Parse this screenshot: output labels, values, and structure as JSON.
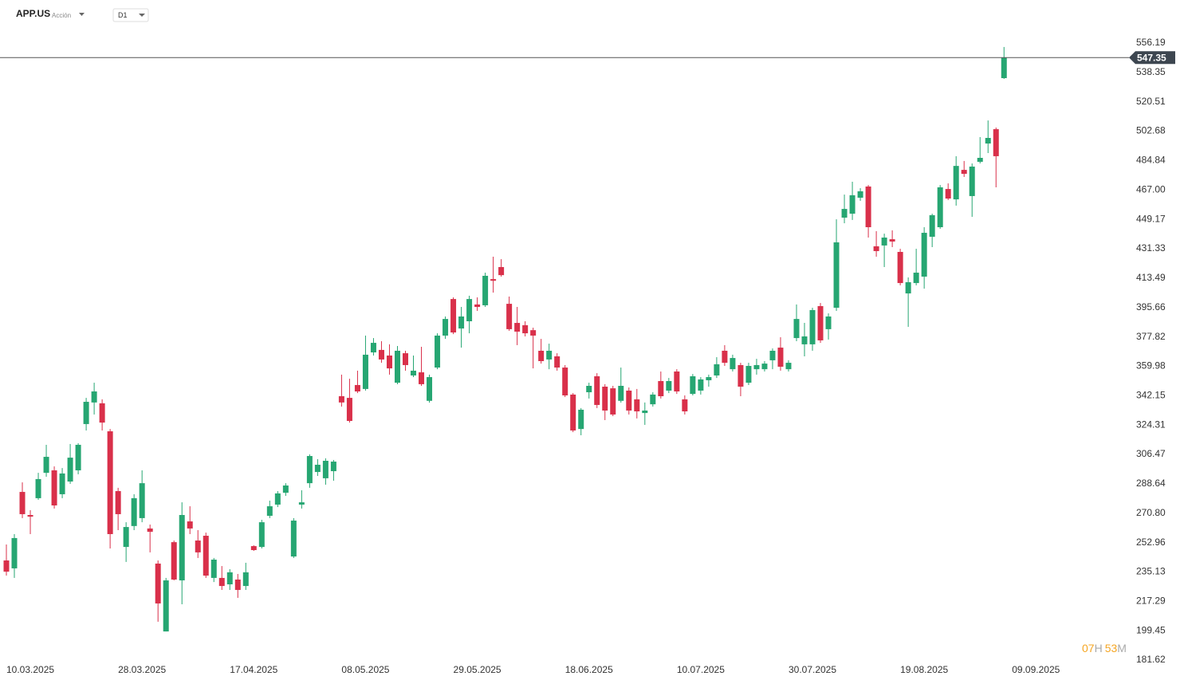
{
  "header": {
    "symbol": "APP.US",
    "kind": "Acción",
    "timeframe": "D1"
  },
  "timer": {
    "hours": "07",
    "hours_unit": "H",
    "minutes": "53",
    "minutes_unit": "M"
  },
  "chart_data": {
    "type": "candlestick",
    "up_color": "#26a672",
    "down_color": "#d9304a",
    "price_line_color": "#555555",
    "current_price": 547.35,
    "ylim": [
      181.62,
      556.19
    ],
    "yticks": [
      556.19,
      538.35,
      520.51,
      502.68,
      484.84,
      {
        "value": 467,
        "label": "467.00"
      },
      449.17,
      431.33,
      413.49,
      395.66,
      377.82,
      359.98,
      342.15,
      324.31,
      306.47,
      288.64,
      {
        "value": 270.8,
        "label": "270.80"
      },
      252.96,
      235.13,
      217.29,
      199.45,
      181.62
    ],
    "categories": [
      "10.03.2025",
      null,
      null,
      null,
      null,
      null,
      null,
      null,
      null,
      null,
      null,
      null,
      null,
      null,
      "28.03.2025",
      null,
      null,
      null,
      null,
      null,
      null,
      null,
      null,
      null,
      null,
      null,
      null,
      null,
      "17.04.2025",
      null,
      null,
      null,
      null,
      null,
      null,
      null,
      null,
      null,
      null,
      null,
      null,
      null,
      "08.05.2025",
      null,
      null,
      null,
      null,
      null,
      null,
      null,
      null,
      null,
      null,
      null,
      null,
      null,
      "29.05.2025",
      null,
      null,
      null,
      null,
      null,
      null,
      null,
      null,
      null,
      null,
      null,
      null,
      null,
      "18.06.2025",
      null,
      null,
      null,
      null,
      null,
      null,
      null,
      null,
      null,
      null,
      null,
      null,
      null,
      "10.07.2025",
      null,
      null,
      null,
      null,
      null,
      null,
      null,
      null,
      null,
      null,
      null,
      null,
      null,
      "30.07.2025",
      null,
      null,
      null,
      null,
      null,
      null,
      null,
      null,
      null,
      null,
      null,
      null,
      null,
      "19.08.2025",
      null,
      null,
      null,
      null,
      null,
      null,
      null,
      null,
      null,
      null,
      null,
      null,
      null,
      "09.09.2025"
    ],
    "open": [
      242.1,
      237.3,
      283.7,
      269.7,
      279.9,
      295.3,
      296.8,
      282.3,
      290.0,
      296.8,
      324.9,
      338.0,
      337.5,
      320.5,
      284.2,
      250.3,
      263.0,
      267.8,
      261.5,
      240.2,
      199.0,
      253.2,
      230.0,
      265.8,
      254.2,
      257.1,
      231.5,
      231.5,
      227.6,
      230.5,
      226.6,
      250.8,
      250.3,
      269.2,
      276.0,
      283.2,
      244.5,
      276.0,
      289.0,
      295.8,
      292.0,
      296.3,
      341.8,
      340.8,
      348.6,
      346.2,
      368.4,
      369.9,
      366.5,
      350.0,
      367.9,
      354.4,
      356.3,
      339.0,
      359.2,
      378.6,
      400.8,
      382.9,
      387.3,
      397.5,
      397.0,
      412.9,
      420.2,
      397.9,
      386.3,
      384.9,
      381.9,
      369.4,
      364.1,
      366.0,
      359.2,
      342.8,
      321.9,
      344.2,
      353.9,
      347.6,
      346.6,
      339.0,
      345.2,
      339.9,
      331.6,
      336.9,
      351.0,
      345.2,
      356.8,
      339.9,
      343.2,
      345.2,
      351.5,
      354.4,
      369.4,
      358.2,
      360.7,
      350.0,
      358.2,
      358.2,
      363.6,
      371.3,
      358.2,
      377.1,
      373.3,
      373.3,
      396.5,
      382.5,
      395.5,
      450.2,
      452.6,
      462.3,
      469.1,
      432.8,
      433.3,
      437.1,
      429.4,
      404.2,
      410.5,
      414.4,
      438.6,
      444.4,
      467.6,
      461.3,
      479.2,
      463.3,
      484.1,
      495.2,
      503.9,
      534.9,
      null
    ],
    "high": [
      251.8,
      258.1,
      289.5,
      272.6,
      295.3,
      312.3,
      299.2,
      298.2,
      312.8,
      313.3,
      340.8,
      350.0,
      339.9,
      321.9,
      286.2,
      265.3,
      282.3,
      296.8,
      263.9,
      242.1,
      231.5,
      254.2,
      277.4,
      275.0,
      260.5,
      259.0,
      243.6,
      238.7,
      236.8,
      233.9,
      240.7,
      251.3,
      266.8,
      278.4,
      284.2,
      289.0,
      267.8,
      284.7,
      306.5,
      303.6,
      304.1,
      303.1,
      354.9,
      352.4,
      357.3,
      378.6,
      377.1,
      375.2,
      373.3,
      372.3,
      369.4,
      366.5,
      371.8,
      354.9,
      380.0,
      390.2,
      401.8,
      396.0,
      402.8,
      401.8,
      416.8,
      426.5,
      425.0,
      402.3,
      396.0,
      387.3,
      383.4,
      376.6,
      373.7,
      367.9,
      360.7,
      343.7,
      334.6,
      350.0,
      355.8,
      349.1,
      348.1,
      359.2,
      347.1,
      346.2,
      338.0,
      344.2,
      356.8,
      352.9,
      358.2,
      342.3,
      355.3,
      353.4,
      354.9,
      365.5,
      372.8,
      367.0,
      362.1,
      362.1,
      364.5,
      363.1,
      370.8,
      377.6,
      363.6,
      397.5,
      386.3,
      395.5,
      398.4,
      392.1,
      449.2,
      464.2,
      472.0,
      468.1,
      470.0,
      442.0,
      440.5,
      442.5,
      431.3,
      413.9,
      431.3,
      444.4,
      452.6,
      470.0,
      471.0,
      487.5,
      484.6,
      483.1,
      499.1,
      509.2,
      504.9,
      553.8,
      null
    ],
    "low": [
      232.9,
      231.5,
      267.8,
      258.1,
      278.9,
      292.9,
      273.6,
      279.9,
      288.6,
      294.4,
      321.0,
      330.7,
      321.0,
      249.4,
      260.5,
      241.2,
      260.5,
      265.3,
      247.0,
      204.9,
      199.0,
      230.0,
      215.5,
      258.1,
      243.6,
      231.5,
      229.0,
      224.2,
      224.2,
      219.4,
      224.2,
      247.9,
      249.4,
      267.8,
      274.5,
      281.3,
      243.6,
      273.6,
      286.2,
      293.4,
      288.1,
      290.5,
      335.5,
      325.8,
      343.7,
      345.2,
      366.5,
      362.1,
      354.9,
      349.1,
      357.3,
      353.4,
      348.1,
      337.9,
      358.2,
      376.6,
      379.5,
      371.3,
      380.0,
      393.6,
      396.0,
      404.7,
      414.4,
      381.5,
      372.8,
      378.1,
      358.7,
      361.6,
      358.2,
      357.3,
      341.3,
      320.0,
      318.1,
      340.4,
      334.6,
      327.3,
      329.7,
      337.9,
      330.7,
      328.3,
      324.4,
      335.5,
      340.4,
      343.7,
      343.2,
      330.7,
      342.3,
      342.8,
      347.6,
      352.9,
      360.2,
      356.8,
      341.8,
      348.6,
      354.9,
      356.8,
      358.2,
      357.3,
      356.8,
      375.2,
      366.0,
      369.4,
      374.2,
      376.2,
      393.6,
      446.8,
      448.8,
      460.4,
      438.1,
      426.5,
      420.2,
      432.3,
      409.1,
      383.9,
      409.1,
      407.1,
      432.3,
      443.4,
      460.9,
      457.5,
      474.9,
      450.7,
      483.1,
      489.4,
      468.6,
      534.4,
      null
    ],
    "close": [
      235.3,
      255.7,
      270.2,
      268.7,
      291.5,
      305.0,
      275.5,
      294.9,
      304.5,
      312.3,
      338.4,
      344.7,
      325.8,
      258.1,
      270.2,
      262.4,
      279.9,
      289.0,
      259.5,
      216.0,
      230.0,
      230.5,
      269.7,
      261.5,
      247.0,
      232.9,
      242.6,
      226.6,
      234.9,
      224.2,
      234.9,
      248.4,
      265.3,
      275.0,
      282.8,
      287.6,
      266.3,
      277.4,
      305.5,
      300.2,
      302.6,
      302.1,
      338.0,
      326.8,
      344.7,
      367.0,
      374.2,
      364.1,
      358.7,
      369.4,
      360.7,
      357.3,
      349.1,
      353.4,
      378.6,
      388.7,
      380.5,
      390.2,
      400.8,
      396.0,
      414.9,
      411.9,
      415.3,
      382.5,
      381.0,
      380.0,
      378.6,
      363.1,
      369.4,
      359.2,
      342.3,
      321.0,
      333.6,
      348.1,
      336.5,
      333.1,
      330.7,
      348.1,
      333.1,
      332.6,
      333.1,
      342.8,
      341.8,
      351.0,
      344.7,
      332.6,
      353.9,
      352.0,
      353.4,
      361.2,
      362.1,
      365.0,
      347.6,
      360.2,
      360.7,
      361.6,
      369.4,
      359.7,
      362.1,
      388.7,
      378.1,
      394.1,
      375.7,
      390.2,
      435.2,
      455.5,
      463.8,
      466.2,
      444.4,
      429.9,
      438.1,
      435.7,
      410.5,
      411.0,
      416.8,
      441.0,
      451.7,
      468.6,
      461.8,
      481.6,
      476.8,
      481.2,
      486.5,
      498.6,
      487.5,
      547.35,
      null
    ]
  }
}
